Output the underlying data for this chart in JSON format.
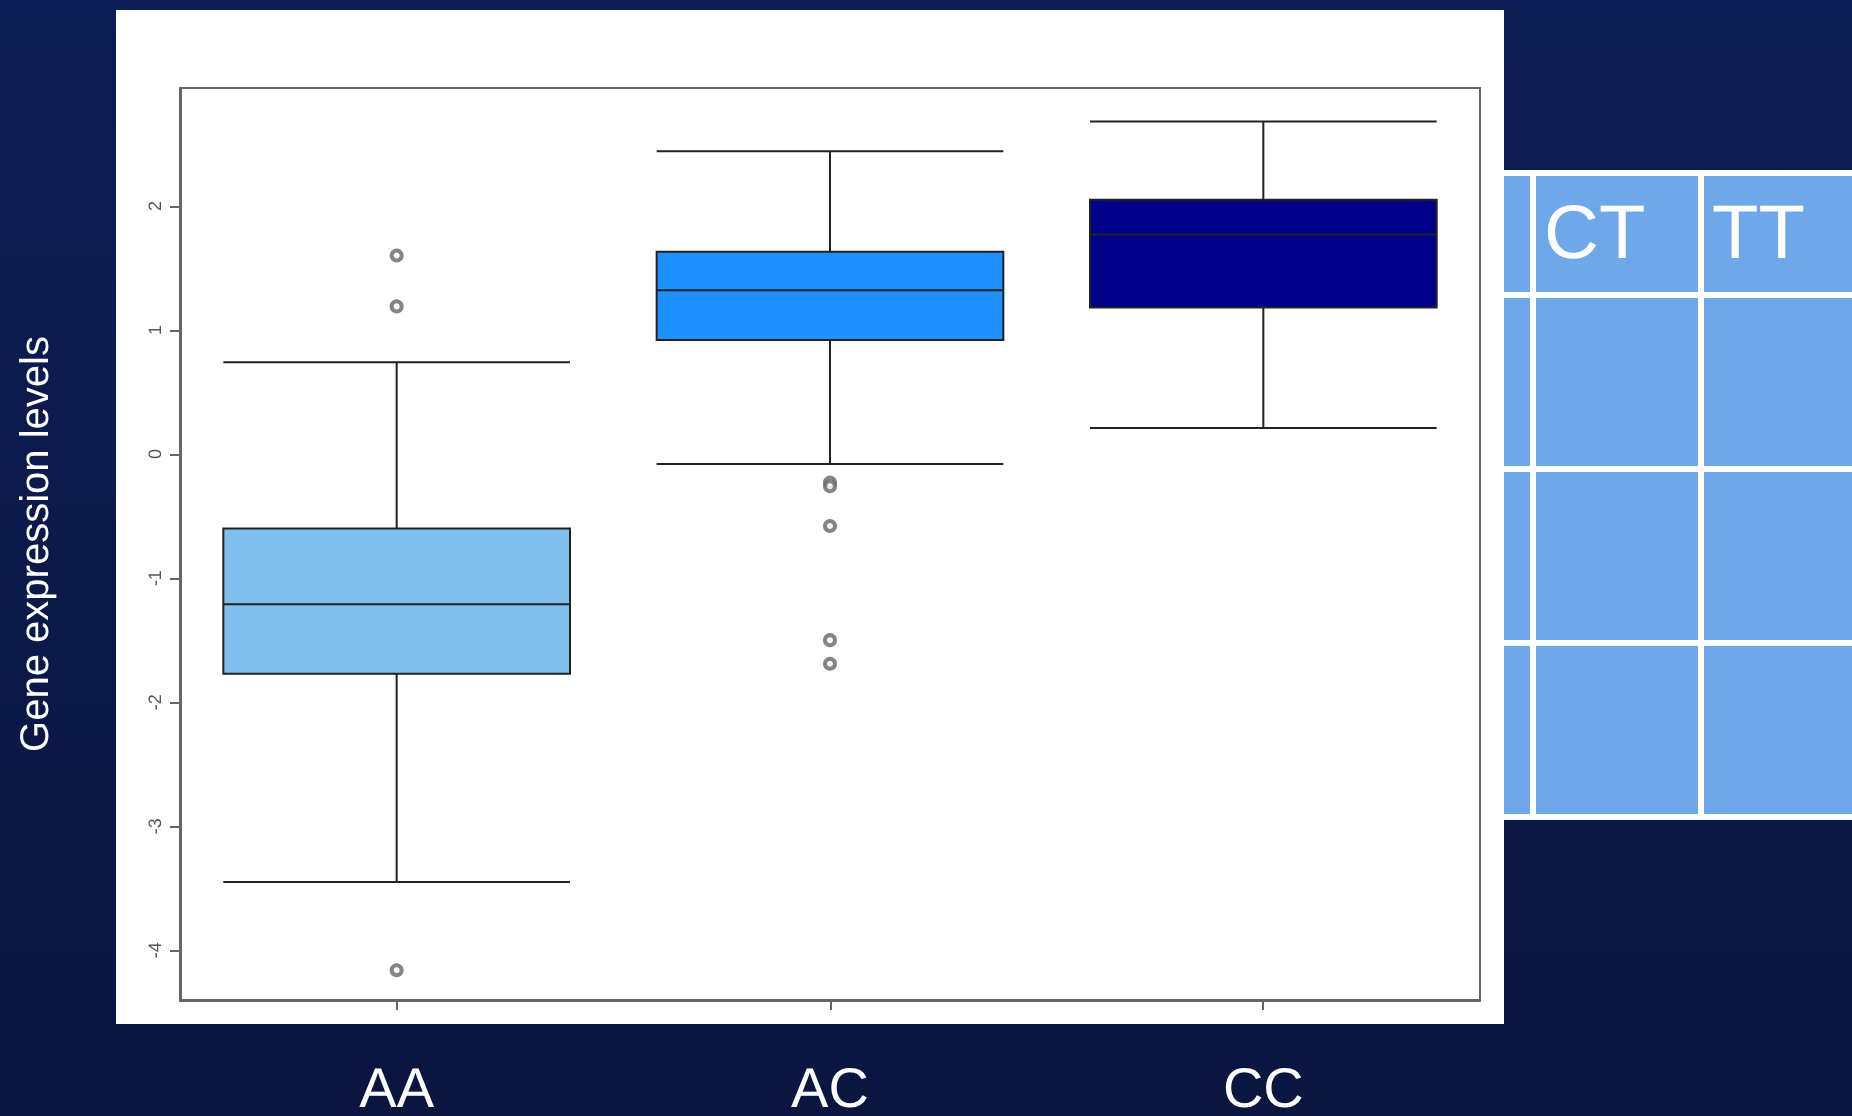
{
  "chart_data": {
    "type": "box",
    "ylabel": "Gene expression levels",
    "categories": [
      "AA",
      "AC",
      "CC"
    ],
    "colors": [
      "#7fbfee",
      "#1e90ff",
      "#00008b"
    ],
    "boxes": [
      {
        "low": -3.45,
        "q1": -1.77,
        "median": -1.21,
        "q3": -0.6,
        "high": 0.74,
        "outliers": [
          1.6,
          1.19,
          -4.16
        ]
      },
      {
        "low": -0.08,
        "q1": 0.92,
        "median": 1.32,
        "q3": 1.63,
        "high": 2.44,
        "outliers": [
          -0.23,
          -0.26,
          -0.58,
          -1.5,
          -1.69
        ]
      },
      {
        "low": 0.21,
        "q1": 1.18,
        "median": 1.77,
        "q3": 2.05,
        "high": 2.68
      }
    ],
    "ylim": [
      -4.4,
      2.95
    ],
    "yticks": [
      -4,
      -3,
      -2,
      -1,
      0,
      1,
      2
    ],
    "annotations": [
      "CT",
      "TT"
    ]
  }
}
